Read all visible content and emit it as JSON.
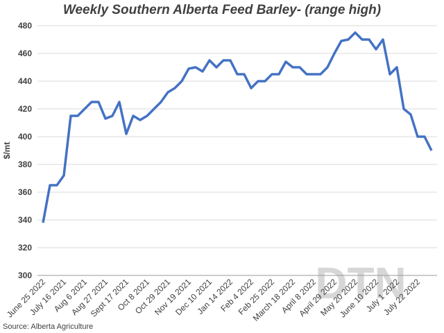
{
  "chart_data": {
    "type": "line",
    "title": "Weekly Southern Alberta Feed Barley- (range high)",
    "y_label": "$/mt",
    "source": "Source: Alberta Agriculture",
    "watermark": "DTN",
    "categories": [
      "June 25 2022",
      null,
      null,
      "July 16 2021",
      null,
      null,
      "Aug 6 2021",
      null,
      null,
      "Aug 27 2021",
      null,
      null,
      "Sept 17 2021",
      null,
      null,
      "Oct 8 2021",
      null,
      null,
      "Oct 29 2021",
      null,
      null,
      "Nov 19 2021",
      null,
      null,
      "Dec 10 2021",
      null,
      null,
      "Jan 14 2022",
      null,
      null,
      "Feb 4 2022",
      null,
      null,
      "Feb 25 2022",
      null,
      null,
      "March 18 2022",
      null,
      null,
      "April 8 2022",
      null,
      null,
      "April 29 2022",
      null,
      null,
      "May 20 2022",
      null,
      null,
      "June 10 2022",
      null,
      null,
      "July 1 2022",
      null,
      null,
      "July 22 2022",
      null,
      null
    ],
    "series": [
      {
        "name": "Feed Barley",
        "color": "#4472c4",
        "values": [
          338,
          365,
          365,
          372,
          415,
          415,
          420,
          425,
          425,
          413,
          415,
          425,
          402,
          415,
          412,
          415,
          420,
          425,
          432,
          435,
          440,
          449,
          450,
          447,
          455,
          450,
          455,
          455,
          445,
          445,
          435,
          440,
          440,
          445,
          445,
          454,
          450,
          450,
          445,
          445,
          445,
          450,
          460,
          469,
          470,
          475,
          470,
          470,
          463,
          470,
          445,
          450,
          420,
          416,
          400,
          400,
          390
        ]
      }
    ],
    "ylim": [
      300,
      480
    ],
    "yticks": [
      300,
      320,
      340,
      360,
      380,
      400,
      420,
      440,
      460,
      480
    ],
    "grid": true
  }
}
